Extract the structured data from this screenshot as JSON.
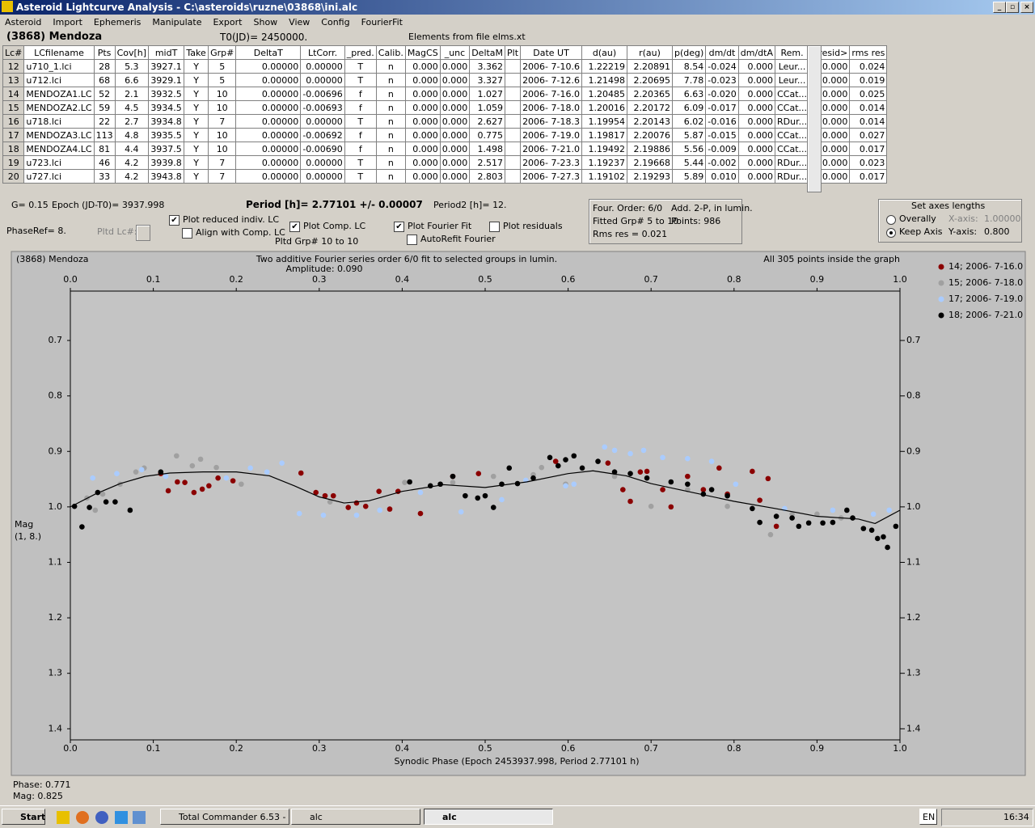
{
  "window": {
    "title": "Asteroid Lightcurve Analysis - C:\\asteroids\\ruzne\\03868\\ini.alc",
    "menu": [
      "Asteroid",
      "Import",
      "Ephemeris",
      "Manipulate",
      "Export",
      "Show",
      "View",
      "Config",
      "FourierFit"
    ]
  },
  "header": {
    "object": "(3868) Mendoza",
    "t0": "T0(JD)= 2450000.",
    "elements": "Elements from file elms.xt"
  },
  "table": {
    "columns": [
      "Lc#",
      "LCfilename",
      "Pts",
      "Cov[h]",
      "midT",
      "Take",
      "Grp#",
      "DeltaT",
      "LtCorr.",
      "_pred.",
      "Calib.",
      "MagCS",
      "_unc",
      "DeltaM",
      "Plt",
      "Date UT",
      "d(au)",
      "r(au)",
      "p(deg)",
      "dm/dt",
      "dm/dtA",
      "Rem.",
      "<resid>",
      "rms res"
    ],
    "rows": [
      [
        "12",
        "u710_1.lci",
        "28",
        "5.3",
        "3927.1",
        "Y",
        "5",
        "0.00000",
        "0.00000",
        "T",
        "n",
        "0.000",
        "0.000",
        "3.362",
        "2006- 7-10.6",
        "1.22219",
        "2.20891",
        "8.54",
        "-0.024",
        "0.000",
        "Leur...",
        "0.000",
        "0.024"
      ],
      [
        "13",
        "u712.lci",
        "68",
        "6.6",
        "3929.1",
        "Y",
        "5",
        "0.00000",
        "0.00000",
        "T",
        "n",
        "0.000",
        "0.000",
        "3.327",
        "2006- 7-12.6",
        "1.21498",
        "2.20695",
        "7.78",
        "-0.023",
        "0.000",
        "Leur...",
        "0.000",
        "0.019"
      ],
      [
        "14",
        "MENDOZA1.LC",
        "52",
        "2.1",
        "3932.5",
        "Y",
        "10",
        "0.00000",
        "-0.00696",
        "f",
        "n",
        "0.000",
        "0.000",
        "1.027",
        "2006- 7-16.0",
        "1.20485",
        "2.20365",
        "6.63",
        "-0.020",
        "0.000",
        "CCat...",
        "0.000",
        "0.025"
      ],
      [
        "15",
        "MENDOZA2.LC",
        "59",
        "4.5",
        "3934.5",
        "Y",
        "10",
        "0.00000",
        "-0.00693",
        "f",
        "n",
        "0.000",
        "0.000",
        "1.059",
        "2006- 7-18.0",
        "1.20016",
        "2.20172",
        "6.09",
        "-0.017",
        "0.000",
        "CCat...",
        "0.000",
        "0.014"
      ],
      [
        "16",
        "u718.lci",
        "22",
        "2.7",
        "3934.8",
        "Y",
        "7",
        "0.00000",
        "0.00000",
        "T",
        "n",
        "0.000",
        "0.000",
        "2.627",
        "2006- 7-18.3",
        "1.19954",
        "2.20143",
        "6.02",
        "-0.016",
        "0.000",
        "RDur...",
        "0.000",
        "0.014"
      ],
      [
        "17",
        "MENDOZA3.LC",
        "113",
        "4.8",
        "3935.5",
        "Y",
        "10",
        "0.00000",
        "-0.00692",
        "f",
        "n",
        "0.000",
        "0.000",
        "0.775",
        "2006- 7-19.0",
        "1.19817",
        "2.20076",
        "5.87",
        "-0.015",
        "0.000",
        "CCat...",
        "0.000",
        "0.027"
      ],
      [
        "18",
        "MENDOZA4.LC",
        "81",
        "4.4",
        "3937.5",
        "Y",
        "10",
        "0.00000",
        "-0.00690",
        "f",
        "n",
        "0.000",
        "0.000",
        "1.498",
        "2006- 7-21.0",
        "1.19492",
        "2.19886",
        "5.56",
        "-0.009",
        "0.000",
        "CCat...",
        "0.000",
        "0.017"
      ],
      [
        "19",
        "u723.lci",
        "46",
        "4.2",
        "3939.8",
        "Y",
        "7",
        "0.00000",
        "0.00000",
        "T",
        "n",
        "0.000",
        "0.000",
        "2.517",
        "2006- 7-23.3",
        "1.19237",
        "2.19668",
        "5.44",
        "-0.002",
        "0.000",
        "RDur...",
        "0.000",
        "0.023"
      ],
      [
        "20",
        "u727.lci",
        "33",
        "4.2",
        "3943.8",
        "Y",
        "7",
        "0.00000",
        "0.00000",
        "T",
        "n",
        "0.000",
        "0.000",
        "2.803",
        "2006- 7-27.3",
        "1.19102",
        "2.19293",
        "5.89",
        "0.010",
        "0.000",
        "RDur...",
        "0.000",
        "0.017"
      ]
    ]
  },
  "controls": {
    "g": "G= 0.15",
    "epoch": "Epoch (JD-T0)= 3937.998",
    "period": "Period [h]= 2.77101 +/- 0.00007",
    "period2": "Period2 [h]= 12.",
    "phaseref": "PhaseRef= 8.",
    "pltd_lc": "Pltd Lc#:",
    "pltd_grp": "Pltd Grp#  10 to   10",
    "checkboxes": [
      {
        "label": "Plot reduced indiv. LC",
        "checked": true
      },
      {
        "label": "Align with Comp. LC",
        "checked": false
      },
      {
        "label": "Plot Comp. LC",
        "checked": true
      },
      {
        "label": "Plot Fourier Fit",
        "checked": true
      },
      {
        "label": "AutoRefit Fourier",
        "checked": false
      },
      {
        "label": "Plot residuals",
        "checked": false
      }
    ]
  },
  "fit_info": {
    "order": "Four. Order:  6/0",
    "add": "Add. 2-P, in lumin.",
    "groups": "Fitted Grp# 5 to 10",
    "points": "Points: 986",
    "rms": "Rms res     = 0.021"
  },
  "axes_box": {
    "title": "Set axes lengths",
    "options": [
      {
        "label": "Overally",
        "selected": false
      },
      {
        "label": "Keep Axis",
        "selected": true
      }
    ],
    "x_label": "X-axis:",
    "x_value": "1.00000",
    "y_label": "Y-axis:",
    "y_value": "0.800"
  },
  "chart_data": {
    "type": "scatter",
    "title": "(3868) Mendoza",
    "subtitle": "Two additive Fourier series order 6/0 fit to selected groups in lumin.",
    "annotation": "Amplitude: 0.090",
    "note": "All 305 points inside the graph",
    "x_label": "Synodic Phase (Epoch 2453937.998, Period 2.77101 h)",
    "y_label": "Mag",
    "y_label2": "(1, 8.)",
    "xlim": [
      0,
      1
    ],
    "ylim": [
      1.42,
      0.611
    ],
    "xticks": [
      {
        "value": 0,
        "label": "0.0"
      },
      0.1,
      0.2,
      0.3,
      0.4,
      0.5,
      0.6,
      0.7,
      0.8,
      0.9,
      {
        "value": 1,
        "label": "1.0"
      }
    ],
    "yticks": [
      0.7,
      0.8,
      0.9,
      {
        "value": 1,
        "label": "1.0"
      },
      1.1,
      1.2,
      1.3,
      1.4
    ],
    "legend": "right",
    "series": [
      {
        "name": "14; 2006- 7-16.0",
        "color": "#8b0000",
        "x": [
          0.109,
          0.118,
          0.129,
          0.138,
          0.149,
          0.159,
          0.167,
          0.178,
          0.196,
          0.278,
          0.296,
          0.307,
          0.317,
          0.335,
          0.345,
          0.356,
          0.372,
          0.385,
          0.395,
          0.422,
          0.461,
          0.492,
          0.585,
          0.648,
          0.666,
          0.675,
          0.687,
          0.695,
          0.714,
          0.724,
          0.744,
          0.763,
          0.782,
          0.792,
          0.822,
          0.831,
          0.841,
          0.851
        ],
        "values": [
          0.94,
          0.971,
          0.955,
          0.956,
          0.974,
          0.968,
          0.962,
          0.948,
          0.953,
          0.939,
          0.974,
          0.98,
          0.98,
          1.001,
          0.993,
          0.999,
          0.972,
          1.004,
          0.972,
          1.012,
          0.945,
          0.94,
          0.918,
          0.921,
          0.969,
          0.99,
          0.937,
          0.936,
          0.969,
          1.0,
          0.945,
          0.969,
          0.93,
          0.977,
          0.936,
          0.988,
          0.949,
          1.035
        ]
      },
      {
        "name": "15; 2006- 7-18.0",
        "color": "#a0a0a0",
        "x": [
          0.02,
          0.03,
          0.039,
          0.06,
          0.079,
          0.089,
          0.128,
          0.147,
          0.157,
          0.176,
          0.206,
          0.313,
          0.403,
          0.461,
          0.51,
          0.558,
          0.568,
          0.597,
          0.656,
          0.7,
          0.744,
          0.792,
          0.844,
          0.87,
          0.9,
          0.929
        ],
        "values": [
          0.984,
          1.006,
          0.977,
          0.959,
          0.937,
          0.93,
          0.908,
          0.926,
          0.914,
          0.929,
          0.959,
          0.991,
          0.956,
          0.956,
          0.945,
          0.942,
          0.929,
          0.959,
          0.945,
          0.999,
          0.969,
          0.999,
          1.05,
          1.013,
          1.013,
          1.02
        ]
      },
      {
        "name": "17; 2006- 7-19.0",
        "color": "#aaccff",
        "x": [
          0.027,
          0.056,
          0.086,
          0.115,
          0.188,
          0.217,
          0.237,
          0.255,
          0.276,
          0.305,
          0.345,
          0.373,
          0.422,
          0.471,
          0.52,
          0.549,
          0.597,
          0.607,
          0.644,
          0.656,
          0.675,
          0.691,
          0.714,
          0.744,
          0.773,
          0.802,
          0.861,
          0.919,
          0.968,
          0.987
        ],
        "values": [
          0.948,
          0.94,
          0.933,
          0.945,
          0.948,
          0.93,
          0.937,
          0.921,
          1.012,
          1.015,
          1.015,
          1.006,
          0.974,
          1.009,
          0.987,
          0.952,
          0.962,
          0.959,
          0.892,
          0.898,
          0.904,
          0.898,
          0.911,
          0.913,
          0.918,
          0.959,
          1.003,
          1.006,
          1.013,
          1.006
        ]
      },
      {
        "name": "18; 2006- 7-21.0",
        "color": "#000000",
        "x": [
          0.005,
          0.014,
          0.023,
          0.033,
          0.043,
          0.054,
          0.072,
          0.109,
          0.409,
          0.434,
          0.446,
          0.461,
          0.476,
          0.491,
          0.5,
          0.51,
          0.52,
          0.529,
          0.539,
          0.558,
          0.578,
          0.588,
          0.597,
          0.607,
          0.617,
          0.636,
          0.656,
          0.675,
          0.695,
          0.724,
          0.744,
          0.763,
          0.773,
          0.792,
          0.822,
          0.831,
          0.851,
          0.87,
          0.878,
          0.89,
          0.907,
          0.919,
          0.936,
          0.943,
          0.956,
          0.966,
          0.973,
          0.98,
          0.985,
          0.995
        ],
        "values": [
          0.999,
          1.036,
          1.001,
          0.974,
          0.991,
          0.991,
          1.006,
          0.937,
          0.955,
          0.962,
          0.959,
          0.945,
          0.98,
          0.984,
          0.98,
          1.001,
          0.959,
          0.93,
          0.958,
          0.948,
          0.911,
          0.926,
          0.915,
          0.908,
          0.93,
          0.918,
          0.937,
          0.94,
          0.948,
          0.955,
          0.959,
          0.977,
          0.969,
          0.98,
          1.003,
          1.028,
          1.017,
          1.02,
          1.035,
          1.029,
          1.029,
          1.028,
          1.006,
          1.02,
          1.039,
          1.042,
          1.057,
          1.054,
          1.073,
          1.035
        ]
      }
    ],
    "fit": {
      "color": "#000000",
      "x": [
        0,
        0.03,
        0.06,
        0.09,
        0.12,
        0.16,
        0.2,
        0.24,
        0.27,
        0.3,
        0.33,
        0.36,
        0.4,
        0.45,
        0.5,
        0.55,
        0.6,
        0.63,
        0.67,
        0.7,
        0.75,
        0.8,
        0.85,
        0.9,
        0.95,
        0.97,
        1.0
      ],
      "values": [
        1.0,
        0.977,
        0.958,
        0.945,
        0.939,
        0.937,
        0.937,
        0.944,
        0.962,
        0.982,
        0.993,
        0.989,
        0.972,
        0.96,
        0.965,
        0.955,
        0.94,
        0.935,
        0.944,
        0.958,
        0.974,
        0.99,
        1.003,
        1.017,
        1.022,
        1.03,
        1.006
      ]
    }
  },
  "status": {
    "phase": "Phase: 0.771",
    "mag": "Mag:  0.825"
  },
  "taskbar": {
    "start": "Start",
    "tasks": [
      "Total Commander 6.53 - ...",
      "alc",
      "alc"
    ],
    "lang": "EN",
    "clock": "16:34"
  }
}
